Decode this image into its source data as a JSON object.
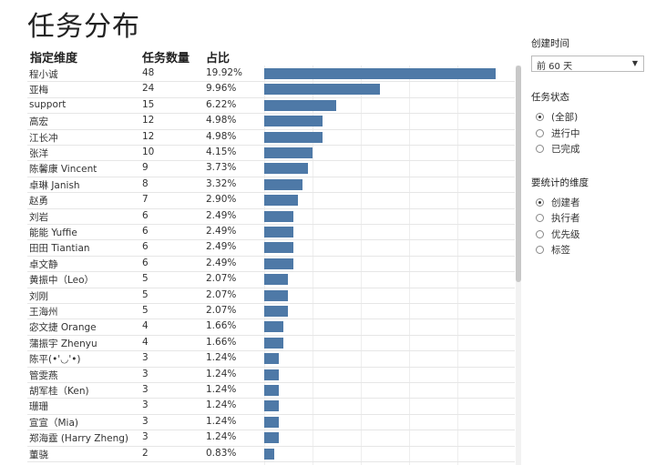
{
  "title": "任务分布",
  "columns": {
    "dimension": "指定维度",
    "count": "任务数量",
    "share": "占比"
  },
  "filters": {
    "created_time": {
      "label": "创建时间",
      "value": "前 60 天"
    },
    "task_status": {
      "label": "任务状态",
      "options": [
        "(全部)",
        "进行中",
        "已完成"
      ],
      "selected": 0
    },
    "dimension": {
      "label": "要统计的维度",
      "options": [
        "创建者",
        "执行者",
        "优先级",
        "标签"
      ],
      "selected": 0
    }
  },
  "chart_data": {
    "type": "bar",
    "orientation": "horizontal",
    "categories": [
      "程小诚",
      "亚梅",
      "support",
      "高宏",
      "江长冲",
      "张洋",
      "陈馨康 Vincent",
      "卓琳 Janish",
      "赵勇",
      "刘岩",
      "能能 Yuffie",
      "田田 Tiantian",
      "卓文静",
      "黄振中（Leo）",
      "刘刚",
      "王海州",
      "宓文捷 Orange",
      "蒲振宇 Zhenyu",
      "陈平(•'◡'•)",
      "管雯燕",
      "胡军桂（Ken)",
      "珊珊",
      "宣宣（Mia)",
      "郑海霆 (Harry Zheng)",
      "董骁"
    ],
    "values": [
      48,
      24,
      15,
      12,
      12,
      10,
      9,
      8,
      7,
      6,
      6,
      6,
      6,
      5,
      5,
      5,
      4,
      4,
      3,
      3,
      3,
      3,
      3,
      3,
      2
    ],
    "percent_labels": [
      "19.92%",
      "9.96%",
      "6.22%",
      "4.98%",
      "4.98%",
      "4.15%",
      "3.73%",
      "3.32%",
      "2.90%",
      "2.49%",
      "2.49%",
      "2.49%",
      "2.49%",
      "2.07%",
      "2.07%",
      "2.07%",
      "1.66%",
      "1.66%",
      "1.24%",
      "1.24%",
      "1.24%",
      "1.24%",
      "1.24%",
      "1.24%",
      "0.83%"
    ],
    "xlim": [
      0,
      48
    ],
    "grid": true,
    "bar_color": "#4e79a7"
  },
  "colors": {
    "bar": "#4e79a7"
  }
}
